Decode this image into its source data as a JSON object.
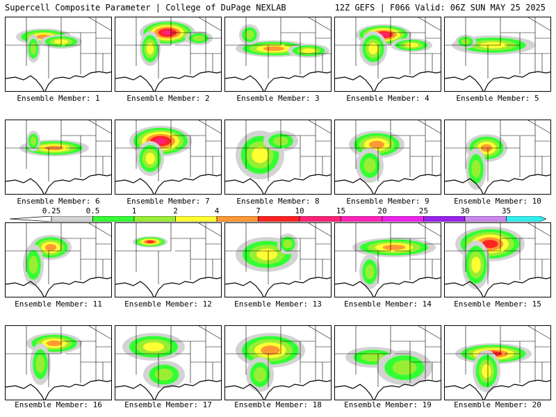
{
  "header": {
    "left_text": "Supercell Composite Parameter | College of DuPage NEXLAB",
    "right_text": "12Z GEFS | F066 Valid: 06Z SUN MAY 25 2025"
  },
  "caption_prefix": "Ensemble Member:",
  "members": [
    1,
    2,
    3,
    4,
    5,
    6,
    7,
    8,
    9,
    10,
    11,
    12,
    13,
    14,
    15,
    16,
    17,
    18,
    19,
    20
  ],
  "colorbar": {
    "labels": [
      "0.25",
      "0.5",
      "1",
      "2",
      "4",
      "7",
      "10",
      "15",
      "20",
      "25",
      "30",
      "35"
    ],
    "colors": [
      "#d3d3d3",
      "#33ff33",
      "#99ee33",
      "#ffff33",
      "#ff9933",
      "#ff2222",
      "#ff2277",
      "#ff22bb",
      "#ee22ee",
      "#9922ee",
      "#cc88ee",
      "#33eeee"
    ]
  }
}
